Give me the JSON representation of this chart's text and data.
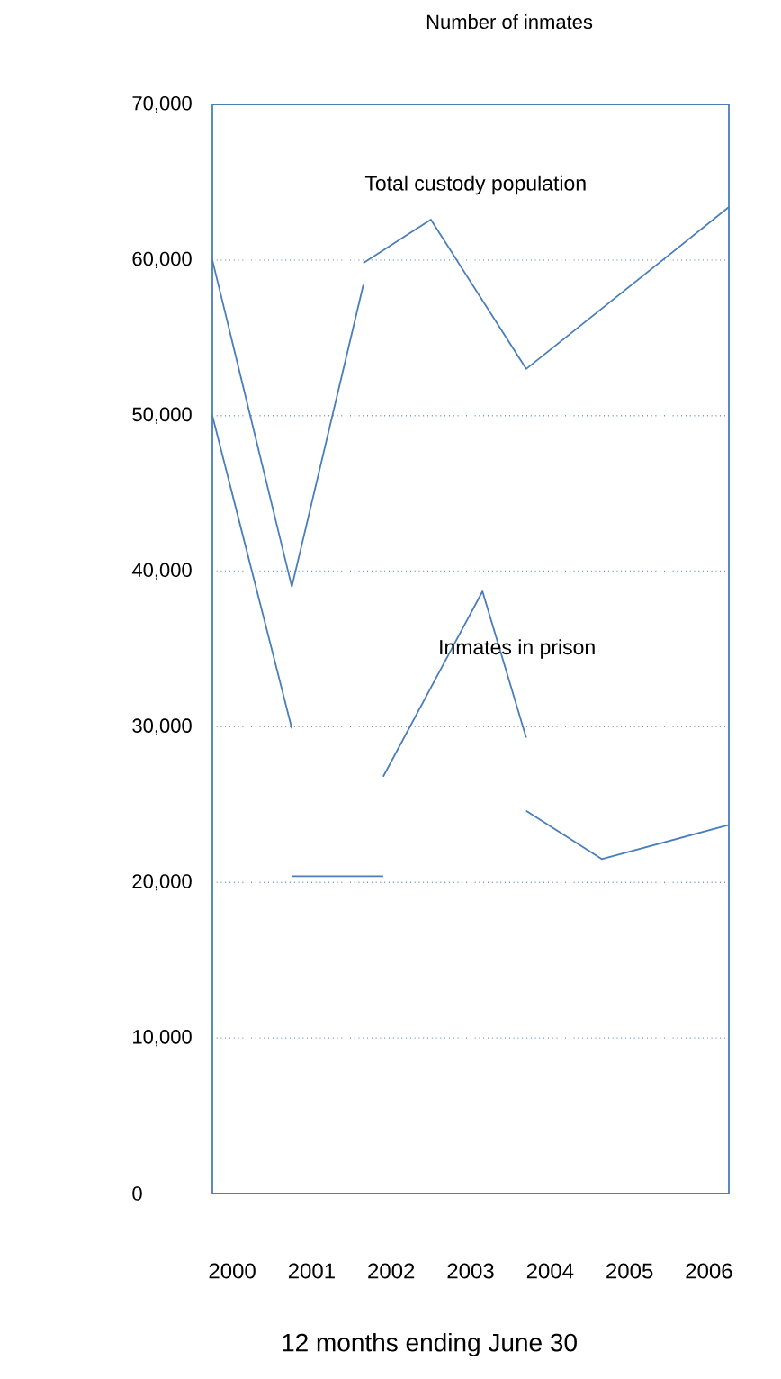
{
  "chart_data": {
    "type": "line",
    "title": "Number of inmates",
    "xlabel": "12 months ending June 30",
    "xlim": [
      1999.75,
      2006.25
    ],
    "xticks": [
      2000,
      2001,
      2002,
      2003,
      2004,
      2005,
      2006
    ],
    "ylim": [
      0,
      70000
    ],
    "yticks": [
      0,
      {
        "value": 10000,
        "label": "10,000"
      },
      {
        "value": 20000,
        "label": "20,000"
      },
      {
        "value": 30000,
        "label": "30,000"
      },
      {
        "value": 40000,
        "label": "40,000"
      },
      {
        "value": 50000,
        "label": "50,000"
      },
      {
        "value": 60000,
        "label": "60,000"
      },
      {
        "value": 70000,
        "label": "70,000"
      }
    ],
    "grid": "y",
    "line_style": "solid",
    "series": [
      {
        "name": "Total custody population",
        "color": "#4a7ebb",
        "x": [
          1999.75,
          2000.75,
          2001.65,
          null,
          2001.65,
          2002.5,
          2003.7,
          2006.25
        ],
        "values": [
          60000,
          39000,
          58400,
          null,
          59800,
          62600,
          53000,
          63400
        ]
      },
      {
        "name": "Inmates in prison",
        "color": "#4a7ebb",
        "x": [
          1999.75,
          2000.75,
          null,
          2000.75,
          2001.9,
          null,
          2001.9,
          2003.15,
          2003.7,
          null,
          2003.7,
          2004.65,
          2006.25
        ],
        "values": [
          50000,
          29900,
          null,
          20400,
          20400,
          null,
          26800,
          38700,
          29300,
          null,
          24600,
          21500,
          23700
        ]
      }
    ]
  }
}
